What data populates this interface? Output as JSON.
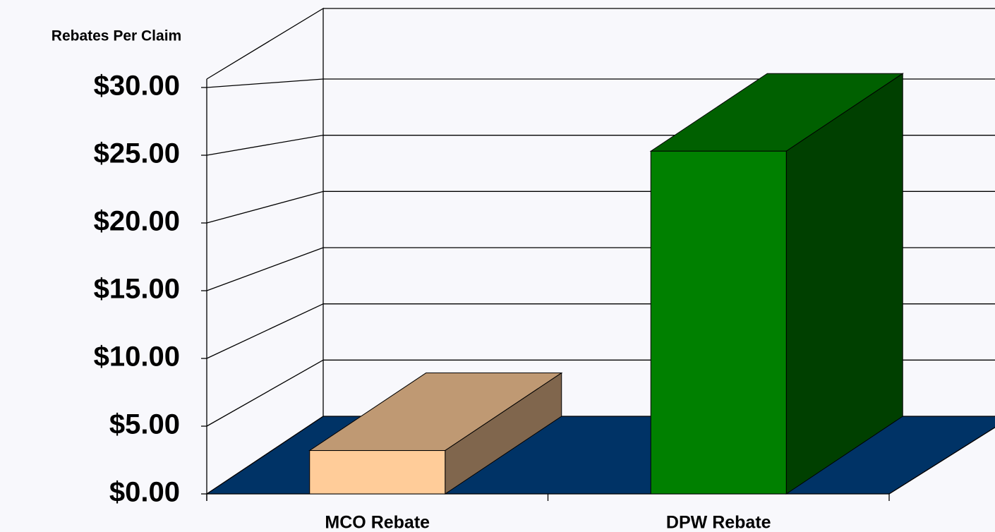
{
  "chart_data": {
    "type": "bar3d",
    "ylabel": "Rebates Per Claim",
    "categories": [
      "MCO Rebate",
      "DPW Rebate"
    ],
    "values": [
      3.2,
      25.3
    ],
    "colors": [
      "#ffcc99",
      "#008000"
    ],
    "ylim": [
      0,
      30
    ],
    "yticks": [
      {
        "value": 0,
        "label": "$0.00"
      },
      {
        "value": 5,
        "label": "$5.00"
      },
      {
        "value": 10,
        "label": "$10.00"
      },
      {
        "value": 15,
        "label": "$15.00"
      },
      {
        "value": 20,
        "label": "$20.00"
      },
      {
        "value": 25,
        "label": "$25.00"
      },
      {
        "value": 30,
        "label": "$30.00"
      }
    ],
    "grid": true,
    "floor_color": "#003366"
  }
}
